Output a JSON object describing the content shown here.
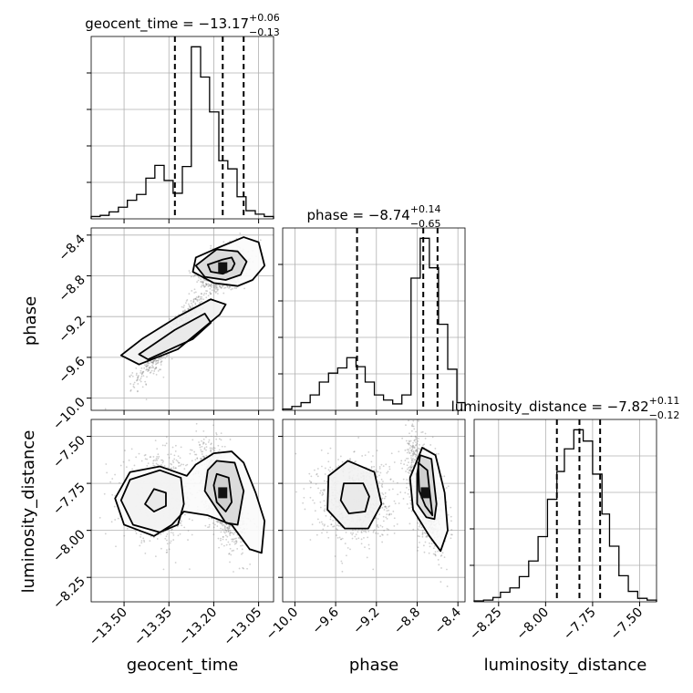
{
  "chart_data": {
    "type": "corner",
    "parameters": [
      {
        "name": "geocent_time",
        "xlabel": "geocent_time",
        "title": {
          "base": "geocent_time = −13.17",
          "plus": "+0.06",
          "minus": "−0.13"
        },
        "range": [
          -13.61,
          -13.0
        ],
        "ticks": [
          -13.5,
          -13.35,
          -13.2,
          -13.05
        ],
        "tick_labels": [
          "−13.50",
          "−13.35",
          "−13.20",
          "−13.05"
        ],
        "quantiles": [
          -13.33,
          -13.17,
          -13.1
        ],
        "hist_edges": [
          -13.61,
          -13.58,
          -13.55,
          -13.519,
          -13.489,
          -13.458,
          -13.427,
          -13.397,
          -13.366,
          -13.336,
          -13.305,
          -13.275,
          -13.244,
          -13.214,
          -13.183,
          -13.153,
          -13.122,
          -13.092,
          -13.061,
          -13.031,
          -13.0
        ],
        "hist": [
          2,
          3,
          6,
          10,
          16,
          21,
          35,
          46,
          33,
          22,
          45,
          148,
          122,
          92,
          50,
          43,
          19,
          7,
          4,
          2
        ]
      },
      {
        "name": "phase",
        "xlabel": "phase",
        "ylabel": "phase",
        "title": {
          "base": "phase = −8.74",
          "plus": "+0.14",
          "minus": "−0.65"
        },
        "range": [
          -10.12,
          -8.33
        ],
        "ticks": [
          -10.0,
          -9.6,
          -9.2,
          -8.8,
          -8.4
        ],
        "tick_labels": [
          "−10.0",
          "−9.6",
          "−9.2",
          "−8.8",
          "−8.4"
        ],
        "quantiles": [
          -9.39,
          -8.74,
          -8.6
        ],
        "hist_edges": [
          -10.12,
          -10.03,
          -9.94,
          -9.85,
          -9.76,
          -9.67,
          -9.58,
          -9.49,
          -9.4,
          -9.31,
          -9.22,
          -9.13,
          -9.04,
          -8.95,
          -8.86,
          -8.77,
          -8.68,
          -8.59,
          -8.5,
          -8.41,
          -8.33
        ],
        "hist": [
          1,
          3,
          6,
          12,
          22,
          29,
          33,
          41,
          34,
          22,
          12,
          8,
          5,
          12,
          103,
          134,
          111,
          67,
          32,
          6
        ]
      },
      {
        "name": "luminosity_distance",
        "xlabel": "luminosity_distance",
        "ylabel": "luminosity_distance",
        "title": {
          "base": "luminosity_distance = −7.82",
          "plus": "+0.11",
          "minus": "−0.12"
        },
        "range": [
          -8.38,
          -7.41
        ],
        "ticks": [
          -8.25,
          -8.0,
          -7.75,
          -7.5
        ],
        "tick_labels": [
          "−8.25",
          "−8.00",
          "−7.75",
          "−7.50"
        ],
        "quantiles": [
          -7.94,
          -7.82,
          -7.71
        ],
        "hist_edges": [
          -8.38,
          -8.33,
          -8.28,
          -8.24,
          -8.19,
          -8.14,
          -8.09,
          -8.04,
          -7.99,
          -7.94,
          -7.9,
          -7.85,
          -7.8,
          -7.75,
          -7.7,
          -7.66,
          -7.61,
          -7.56,
          -7.51,
          -7.46,
          -7.41
        ],
        "hist": [
          1,
          2,
          5,
          11,
          16,
          29,
          47,
          75,
          118,
          150,
          176,
          198,
          185,
          147,
          101,
          64,
          30,
          12,
          4,
          2
        ]
      }
    ],
    "pairs": [
      {
        "x_param": "geocent_time",
        "y_param": "phase",
        "clusters": [
          {
            "mx": -13.34,
            "my": -9.4,
            "sx": 0.055,
            "sy": 0.2,
            "rho": 0.92,
            "weight": 0.35
          },
          {
            "mx": -13.17,
            "my": -8.72,
            "sx": 0.035,
            "sy": 0.09,
            "rho": 0.25,
            "weight": 0.65
          }
        ],
        "contours": [
          [
            [
              -13.27,
              -9.42
            ],
            [
              -13.21,
              -9.26
            ],
            [
              -13.23,
              -9.17
            ],
            [
              -13.33,
              -9.33
            ],
            [
              -13.45,
              -9.57
            ],
            [
              -13.42,
              -9.62
            ],
            [
              -13.27,
              -9.42
            ]
          ],
          [
            [
              -13.18,
              -9.18
            ],
            [
              -13.16,
              -9.08
            ],
            [
              -13.21,
              -9.03
            ],
            [
              -13.32,
              -9.2
            ],
            [
              -13.44,
              -9.42
            ],
            [
              -13.51,
              -9.58
            ],
            [
              -13.45,
              -9.67
            ],
            [
              -13.32,
              -9.52
            ],
            [
              -13.18,
              -9.18
            ]
          ],
          [
            [
              -13.17,
              -8.64
            ],
            [
              -13.14,
              -8.62
            ],
            [
              -13.13,
              -8.68
            ],
            [
              -13.14,
              -8.74
            ],
            [
              -13.17,
              -8.78
            ],
            [
              -13.21,
              -8.76
            ],
            [
              -13.22,
              -8.69
            ],
            [
              -13.17,
              -8.64
            ]
          ],
          [
            [
              -13.19,
              -8.54
            ],
            [
              -13.12,
              -8.56
            ],
            [
              -13.09,
              -8.66
            ],
            [
              -13.11,
              -8.79
            ],
            [
              -13.16,
              -8.84
            ],
            [
              -13.23,
              -8.81
            ],
            [
              -13.26,
              -8.7
            ],
            [
              -13.19,
              -8.54
            ]
          ],
          [
            [
              -13.1,
              -8.42
            ],
            [
              -13.05,
              -8.47
            ],
            [
              -13.03,
              -8.7
            ],
            [
              -13.07,
              -8.84
            ],
            [
              -13.12,
              -8.9
            ],
            [
              -13.2,
              -8.87
            ],
            [
              -13.27,
              -8.76
            ],
            [
              -13.26,
              -8.62
            ],
            [
              -13.19,
              -8.53
            ],
            [
              -13.1,
              -8.42
            ]
          ]
        ]
      },
      {
        "x_param": "geocent_time",
        "y_param": "luminosity_distance",
        "clusters": [
          {
            "mx": -13.38,
            "my": -7.83,
            "sx": 0.06,
            "sy": 0.11,
            "rho": 0.0,
            "weight": 0.35
          },
          {
            "mx": -13.17,
            "my": -7.8,
            "sx": 0.035,
            "sy": 0.12,
            "rho": -0.55,
            "weight": 0.65
          }
        ],
        "contours": [
          [
            [
              -13.4,
              -7.78
            ],
            [
              -13.36,
              -7.8
            ],
            [
              -13.36,
              -7.87
            ],
            [
              -13.4,
              -7.9
            ],
            [
              -13.43,
              -7.86
            ],
            [
              -13.4,
              -7.78
            ]
          ],
          [
            [
              -13.38,
              -7.68
            ],
            [
              -13.31,
              -7.72
            ],
            [
              -13.3,
              -7.86
            ],
            [
              -13.32,
              -7.97
            ],
            [
              -13.38,
              -8.01
            ],
            [
              -13.47,
              -7.97
            ],
            [
              -13.51,
              -7.84
            ],
            [
              -13.48,
              -7.73
            ],
            [
              -13.38,
              -7.68
            ]
          ],
          [
            [
              -13.19,
              -7.7
            ],
            [
              -13.15,
              -7.72
            ],
            [
              -13.14,
              -7.85
            ],
            [
              -13.16,
              -7.9
            ],
            [
              -13.19,
              -7.85
            ],
            [
              -13.2,
              -7.76
            ],
            [
              -13.19,
              -7.7
            ]
          ],
          [
            [
              -13.19,
              -7.63
            ],
            [
              -13.13,
              -7.64
            ],
            [
              -13.1,
              -7.79
            ],
            [
              -13.12,
              -7.97
            ],
            [
              -13.16,
              -7.96
            ],
            [
              -13.23,
              -7.79
            ],
            [
              -13.22,
              -7.68
            ],
            [
              -13.19,
              -7.63
            ]
          ],
          [
            [
              -13.14,
              -7.58
            ],
            [
              -13.1,
              -7.64
            ],
            [
              -13.06,
              -7.8
            ],
            [
              -13.03,
              -7.95
            ],
            [
              -13.04,
              -8.12
            ],
            [
              -13.08,
              -8.1
            ],
            [
              -13.14,
              -7.97
            ],
            [
              -13.22,
              -7.92
            ],
            [
              -13.3,
              -7.9
            ],
            [
              -13.34,
              -7.97
            ],
            [
              -13.4,
              -8.03
            ],
            [
              -13.5,
              -7.97
            ],
            [
              -13.53,
              -7.83
            ],
            [
              -13.48,
              -7.69
            ],
            [
              -13.38,
              -7.66
            ],
            [
              -13.29,
              -7.71
            ],
            [
              -13.26,
              -7.65
            ],
            [
              -13.2,
              -7.59
            ],
            [
              -13.14,
              -7.58
            ]
          ]
        ]
      },
      {
        "x_param": "phase",
        "y_param": "luminosity_distance",
        "clusters": [
          {
            "mx": -9.41,
            "my": -7.83,
            "sx": 0.18,
            "sy": 0.11,
            "rho": 0.0,
            "weight": 0.35
          },
          {
            "mx": -8.72,
            "my": -7.8,
            "sx": 0.08,
            "sy": 0.13,
            "rho": -0.5,
            "weight": 0.65
          }
        ],
        "contours": [
          [
            [
              -9.52,
              -7.75
            ],
            [
              -9.33,
              -7.75
            ],
            [
              -9.27,
              -7.82
            ],
            [
              -9.31,
              -7.9
            ],
            [
              -9.47,
              -7.91
            ],
            [
              -9.55,
              -7.84
            ],
            [
              -9.52,
              -7.75
            ]
          ],
          [
            [
              -9.48,
              -7.63
            ],
            [
              -9.22,
              -7.69
            ],
            [
              -9.15,
              -7.86
            ],
            [
              -9.28,
              -7.99
            ],
            [
              -9.51,
              -7.99
            ],
            [
              -9.68,
              -7.89
            ],
            [
              -9.67,
              -7.71
            ],
            [
              -9.48,
              -7.63
            ]
          ],
          [
            [
              -8.79,
              -7.64
            ],
            [
              -8.7,
              -7.68
            ],
            [
              -8.67,
              -7.83
            ],
            [
              -8.65,
              -7.92
            ],
            [
              -8.72,
              -7.87
            ],
            [
              -8.78,
              -7.79
            ],
            [
              -8.79,
              -7.64
            ]
          ],
          [
            [
              -8.77,
              -7.6
            ],
            [
              -8.66,
              -7.62
            ],
            [
              -8.61,
              -7.86
            ],
            [
              -8.63,
              -7.94
            ],
            [
              -8.71,
              -7.93
            ],
            [
              -8.8,
              -7.86
            ],
            [
              -8.8,
              -7.7
            ],
            [
              -8.77,
              -7.6
            ]
          ],
          [
            [
              -8.75,
              -7.56
            ],
            [
              -8.62,
              -7.6
            ],
            [
              -8.53,
              -7.8
            ],
            [
              -8.5,
              -8.0
            ],
            [
              -8.57,
              -8.11
            ],
            [
              -8.68,
              -8.03
            ],
            [
              -8.84,
              -7.89
            ],
            [
              -8.87,
              -7.72
            ],
            [
              -8.75,
              -7.56
            ]
          ]
        ]
      }
    ]
  }
}
